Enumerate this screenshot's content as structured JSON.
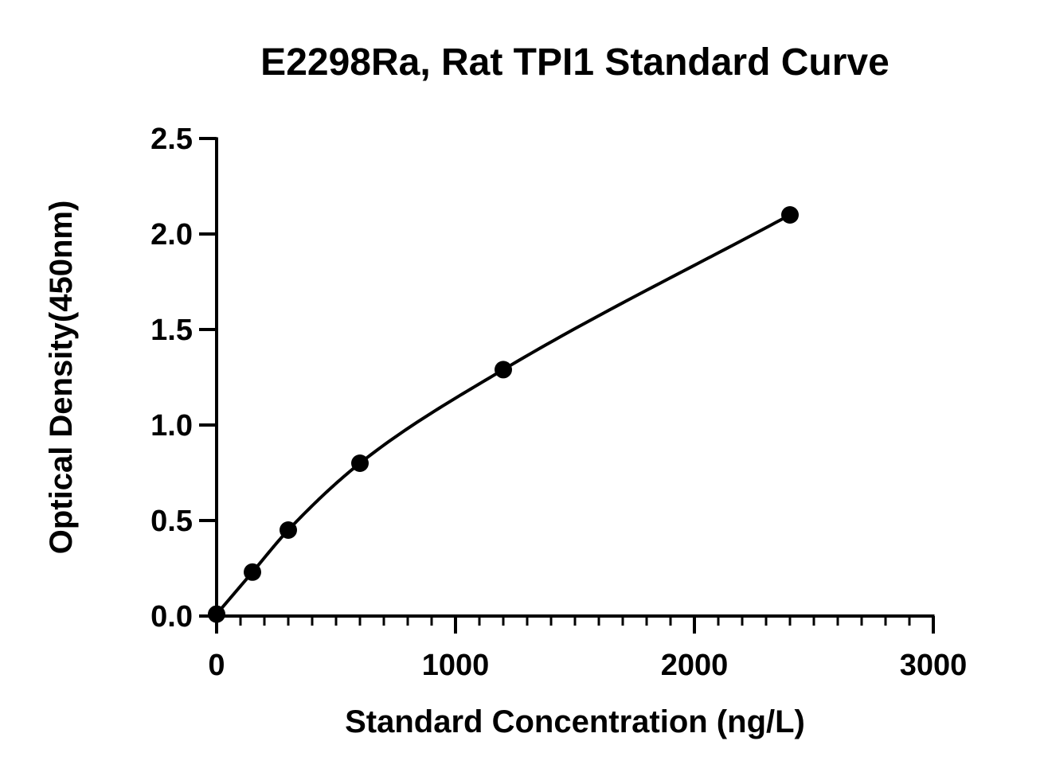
{
  "chart_data": {
    "type": "scatter",
    "title": "E2298Ra, Rat TPI1 Standard Curve",
    "xlabel": "Standard Concentration (ng/L)",
    "ylabel": "Optical Density(450nm)",
    "xlim": [
      0,
      3000
    ],
    "ylim": [
      0,
      2.5
    ],
    "x_ticks": [
      "0",
      "1000",
      "2000",
      "3000"
    ],
    "y_ticks": [
      "0.0",
      "0.5",
      "1.0",
      "1.5",
      "2.0",
      "2.5"
    ],
    "x_minor_tick_step": 100,
    "grid": false,
    "legend": "none",
    "series": [
      {
        "points": [
          {
            "x": 0,
            "y": 0.01
          },
          {
            "x": 150,
            "y": 0.23
          },
          {
            "x": 300,
            "y": 0.45
          },
          {
            "x": 600,
            "y": 0.8
          },
          {
            "x": 1200,
            "y": 1.29
          },
          {
            "x": 2400,
            "y": 2.1
          }
        ],
        "fit": "curve through points",
        "color": "#000000"
      }
    ]
  }
}
